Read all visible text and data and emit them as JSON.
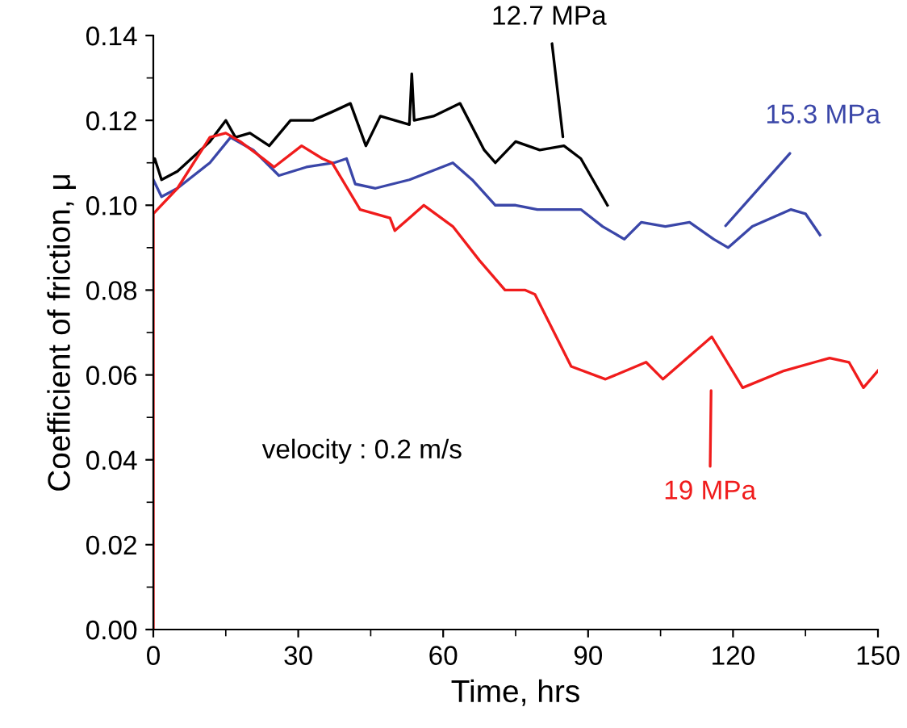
{
  "chart_data": {
    "type": "line",
    "xlabel": "Time, hrs",
    "ylabel": "Coefficient of friction, μ",
    "xlim": [
      0,
      150
    ],
    "xticks": [
      0,
      30,
      60,
      90,
      120,
      150
    ],
    "ylim": [
      0,
      0.14
    ],
    "yticks": [
      {
        "value": 0,
        "label": "0.00"
      },
      {
        "value": 0.02,
        "label": "0.02"
      },
      {
        "value": 0.04,
        "label": "0.04"
      },
      {
        "value": 0.06,
        "label": "0.06"
      },
      {
        "value": 0.08,
        "label": "0.08"
      },
      {
        "value": 0.1,
        "label": "0.10"
      },
      {
        "value": 0.12,
        "label": "0.12"
      },
      {
        "value": 0.14,
        "label": "0.14"
      }
    ],
    "grid": false,
    "marker": "none",
    "line_style": "solid",
    "series": [
      {
        "name": "12.7 MPa",
        "color": "#000000",
        "x": [
          0,
          0.3,
          1.7,
          5,
          11.7,
          15,
          17,
          20,
          24,
          28.4,
          33,
          37,
          40.8,
          44,
          47,
          53,
          53.5,
          54,
          58,
          63.5,
          68.5,
          70.8,
          75,
          80,
          85,
          88.5,
          91,
          94
        ],
        "values": [
          0.11,
          0.111,
          0.106,
          0.108,
          0.115,
          0.12,
          0.116,
          0.117,
          0.114,
          0.12,
          0.12,
          0.122,
          0.124,
          0.114,
          0.121,
          0.119,
          0.131,
          0.12,
          0.121,
          0.124,
          0.113,
          0.11,
          0.115,
          0.113,
          0.114,
          0.111,
          0.106,
          0.1
        ]
      },
      {
        "name": "15.3 MPa",
        "color": "#3a46a8",
        "x": [
          0,
          1.7,
          5,
          11.7,
          16,
          20.7,
          26,
          31.7,
          37.4,
          40,
          41.8,
          46,
          53,
          62,
          66,
          70.8,
          75,
          79.5,
          88.5,
          93,
          97.5,
          101,
          106,
          111,
          116,
          119,
          124,
          132,
          135,
          138
        ],
        "values": [
          0.106,
          0.102,
          0.104,
          0.11,
          0.116,
          0.113,
          0.107,
          0.109,
          0.11,
          0.111,
          0.105,
          0.104,
          0.106,
          0.11,
          0.106,
          0.1,
          0.1,
          0.099,
          0.099,
          0.095,
          0.092,
          0.096,
          0.095,
          0.096,
          0.092,
          0.09,
          0.095,
          0.099,
          0.098,
          0.093
        ]
      },
      {
        "name": "19 MPa",
        "color": "#f01c1c",
        "x": [
          0,
          0,
          5,
          11.7,
          15,
          18,
          22.7,
          25,
          30.7,
          35,
          37,
          42.8,
          49,
          50,
          56,
          62,
          67.5,
          72.8,
          77,
          79,
          86.5,
          93.6,
          102,
          105.5,
          115.6,
          122,
          130.6,
          140,
          144,
          147,
          150
        ],
        "values": [
          0,
          0.098,
          0.104,
          0.116,
          0.117,
          0.115,
          0.111,
          0.109,
          0.114,
          0.111,
          0.11,
          0.099,
          0.097,
          0.094,
          0.1,
          0.095,
          0.087,
          0.08,
          0.08,
          0.079,
          0.062,
          0.059,
          0.063,
          0.059,
          0.069,
          0.057,
          0.061,
          0.064,
          0.063,
          0.057,
          0.061
        ]
      }
    ],
    "annotations": [
      "velocity : 0.2 m/s"
    ]
  }
}
